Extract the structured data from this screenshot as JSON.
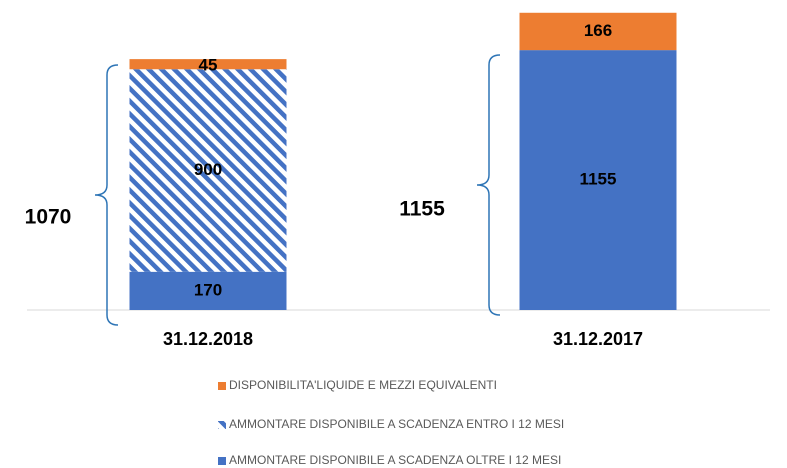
{
  "chart_data": {
    "type": "stacked_bar",
    "categories": [
      "31.12.2018",
      "31.12.2017"
    ],
    "series": [
      {
        "name": "AMMONTARE DISPONIBILE A SCADENZA OLTRE I 12 MESI",
        "color": "#4472c4",
        "values": [
          170,
          1155
        ]
      },
      {
        "name": "AMMONTARE DISPONIBILE A SCADENZA ENTRO I 12 MESI",
        "color": "#4472c4",
        "hatch": true,
        "values": [
          900,
          null
        ]
      },
      {
        "name": "DISPONIBILITA'LIQUIDE E MEZZI EQUIVALENTI",
        "color": "#ed7d31",
        "values": [
          45,
          166
        ]
      }
    ],
    "annotations": [
      "1070",
      "1155"
    ],
    "ylim": [
      0,
      1400
    ]
  }
}
